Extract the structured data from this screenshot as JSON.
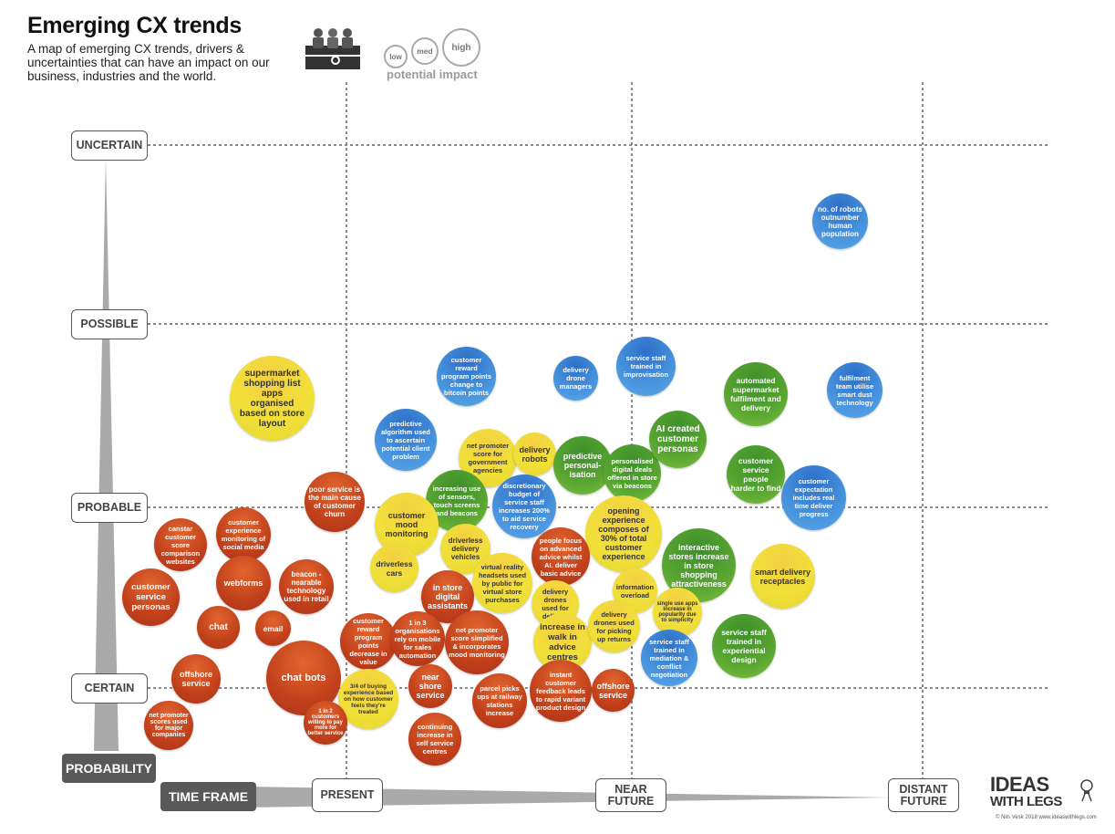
{
  "header": {
    "title": "Emerging CX trends",
    "subtitle": "A map of emerging CX trends, drivers & uncertainties that can have an impact on our business, industries and the world."
  },
  "legend": {
    "icon": "three-figures-icon",
    "sizes": [
      "low",
      "med",
      "high"
    ],
    "caption": "potential impact"
  },
  "axes": {
    "probability_title": "PROBABILITY",
    "timeframe_title": "TIME FRAME",
    "probability_levels": [
      "UNCERTAIN",
      "POSSIBLE",
      "PROBABLE",
      "CERTAIN"
    ],
    "timeframe_levels": [
      "PRESENT",
      "NEAR FUTURE",
      "DISTANT FUTURE"
    ]
  },
  "colors": {
    "red": "#c1401b",
    "yellow": "#f2e03a",
    "blue": "#4691dc",
    "green": "#5aa632",
    "grid": "#888888",
    "axis_wedge": "#aaaaaa"
  },
  "bubbles": [
    {
      "text": "no. of robots outnumber human population",
      "color": "blue"
    },
    {
      "text": "supermarket shopping list apps organised based on store layout",
      "color": "yellow"
    },
    {
      "text": "customer reward program points change to bitcoin points",
      "color": "blue"
    },
    {
      "text": "delivery drone managers",
      "color": "blue"
    },
    {
      "text": "service staff trained in improvisation",
      "color": "blue"
    },
    {
      "text": "automated supermarket fulfilment and delivery",
      "color": "green"
    },
    {
      "text": "fulfilment team utilise smart dust technology",
      "color": "blue"
    },
    {
      "text": "predictive algorithm used to ascertain potential client problem",
      "color": "blue"
    },
    {
      "text": "net promoter score for government agencies",
      "color": "yellow"
    },
    {
      "text": "delivery robots",
      "color": "yellow"
    },
    {
      "text": "predictive personal-isation",
      "color": "green"
    },
    {
      "text": "personalised digital deals offered in store via beacons",
      "color": "green"
    },
    {
      "text": "AI created customer personas",
      "color": "green"
    },
    {
      "text": "customer service people harder to find",
      "color": "green"
    },
    {
      "text": "customer expectation includes real time deliver progress",
      "color": "blue"
    },
    {
      "text": "poor service is the main cause of customer churn",
      "color": "red"
    },
    {
      "text": "increasing use of sensors, touch screens and beacons",
      "color": "green"
    },
    {
      "text": "discretionary budget of service staff increases 200% to aid service recovery",
      "color": "blue"
    },
    {
      "text": "opening experience composes of 30% of total customer experience",
      "color": "yellow"
    },
    {
      "text": "customer experience monitoring of social media",
      "color": "red"
    },
    {
      "text": "canstar customer score comparison websites",
      "color": "red"
    },
    {
      "text": "customer mood monitoring",
      "color": "yellow"
    },
    {
      "text": "driverless delivery vehicles",
      "color": "yellow"
    },
    {
      "text": "people focus on advanced advice whilst AI. deliver basic advice",
      "color": "red"
    },
    {
      "text": "interactive stores increase in store shopping attractiveness",
      "color": "green"
    },
    {
      "text": "smart delivery receptacles",
      "color": "yellow"
    },
    {
      "text": "webforms",
      "color": "red"
    },
    {
      "text": "beacon - nearable technology used in retail",
      "color": "red"
    },
    {
      "text": "driverless cars",
      "color": "yellow"
    },
    {
      "text": "in store digital assistants",
      "color": "red"
    },
    {
      "text": "virtual reality headsets used by public for virtual store purchases",
      "color": "yellow"
    },
    {
      "text": "information overload",
      "color": "yellow"
    },
    {
      "text": "customer service personas",
      "color": "red"
    },
    {
      "text": "chat",
      "color": "red"
    },
    {
      "text": "email",
      "color": "red"
    },
    {
      "text": "delivery drones used for delivery",
      "color": "yellow"
    },
    {
      "text": "single use apps increase in popularity due to simplicity",
      "color": "yellow"
    },
    {
      "text": "customer reward program points decrease in value",
      "color": "red"
    },
    {
      "text": "1 in 3 organisations rely on mobile for sales automation",
      "color": "red"
    },
    {
      "text": "net promoter score simplified & incorporates mood monitoring",
      "color": "red"
    },
    {
      "text": "increase in walk in advice centres",
      "color": "yellow"
    },
    {
      "text": "delivery drones used for picking up returns",
      "color": "yellow"
    },
    {
      "text": "service staff trained in experiential design",
      "color": "green"
    },
    {
      "text": "service staff trained in mediation & conflict negotiation",
      "color": "blue"
    },
    {
      "text": "offshore service",
      "color": "red"
    },
    {
      "text": "chat bots",
      "color": "red"
    },
    {
      "text": "near shore service",
      "color": "red"
    },
    {
      "text": "3/4 of buying experience based on how customer feels they're treated",
      "color": "yellow"
    },
    {
      "text": "instant customer feedback leads to rapid variant product design",
      "color": "red"
    },
    {
      "text": "offshore service",
      "color": "red"
    },
    {
      "text": "parcel picks ups at railway stations increase",
      "color": "red"
    },
    {
      "text": "net promoter scores used for major companies",
      "color": "red"
    },
    {
      "text": "1 in 2 customers willing to pay more for better service",
      "color": "red"
    },
    {
      "text": "continuing increase in self service centres",
      "color": "red"
    }
  ],
  "brand": {
    "line1": "IDEAS",
    "line2": "WITH LEGS",
    "credit": "© Nils Vesk 2018  www.ideaswithlegs.com",
    "icon": "lightbulb-icon"
  }
}
